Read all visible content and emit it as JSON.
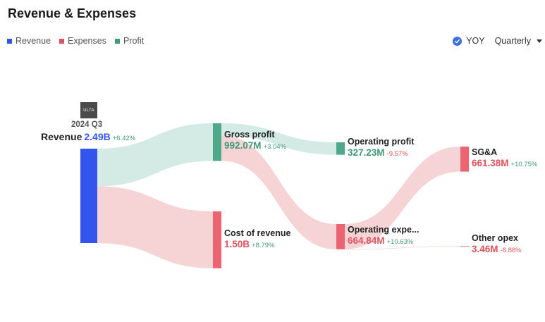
{
  "header": {
    "title": "Revenue & Expenses"
  },
  "legend": [
    {
      "label": "Revenue",
      "color": "#3355ee"
    },
    {
      "label": "Expenses",
      "color": "#e0525c"
    },
    {
      "label": "Profit",
      "color": "#3f9a78"
    }
  ],
  "controls": {
    "yoy_label": "YOY",
    "yoy_checked": true,
    "period_label": "Quarterly"
  },
  "company": {
    "logo_text": "ULTA",
    "period": "2024 Q3"
  },
  "colors": {
    "revenue": "#3355ee",
    "expense": "#eb6470",
    "profit": "#4ea88a",
    "expense_link": "#f6d4d5",
    "profit_link": "#d3ebe4",
    "positive": "#3f9a78",
    "negative": "#e0525c",
    "revenue_text": "#3355ee",
    "expense_text": "#e0525c",
    "profit_text": "#3f9a78"
  },
  "chart_data": {
    "type": "sankey",
    "title": "Revenue & Expenses",
    "unit": "USD",
    "nodes": [
      {
        "id": "revenue",
        "name": "Revenue",
        "value": 2490,
        "display": "2.49B",
        "change": "+6.42%",
        "kind": "revenue",
        "column": 0
      },
      {
        "id": "gross_profit",
        "name": "Gross profit",
        "value": 992.07,
        "display": "992.07M",
        "change": "+3.04%",
        "kind": "profit",
        "column": 1
      },
      {
        "id": "cost_of_revenue",
        "name": "Cost of revenue",
        "value": 1500,
        "display": "1.50B",
        "change": "+8.79%",
        "kind": "expense",
        "column": 1
      },
      {
        "id": "operating_profit",
        "name": "Operating profit",
        "value": 327.23,
        "display": "327.23M",
        "change": "-9.57%",
        "kind": "profit",
        "column": 2
      },
      {
        "id": "operating_expenses",
        "name": "Operating expe...",
        "value": 664.84,
        "display": "664.84M",
        "change": "+10.63%",
        "kind": "expense",
        "column": 2
      },
      {
        "id": "sga",
        "name": "SG&A",
        "value": 661.38,
        "display": "661.38M",
        "change": "+10.75%",
        "kind": "expense",
        "column": 3
      },
      {
        "id": "other_opex",
        "name": "Other opex",
        "value": 3.46,
        "display": "3.46M",
        "change": "-8.88%",
        "kind": "expense",
        "column": 3
      }
    ],
    "links": [
      {
        "source": "revenue",
        "target": "gross_profit",
        "value": 992.07,
        "kind": "profit"
      },
      {
        "source": "revenue",
        "target": "cost_of_revenue",
        "value": 1500,
        "kind": "expense"
      },
      {
        "source": "gross_profit",
        "target": "operating_profit",
        "value": 327.23,
        "kind": "profit"
      },
      {
        "source": "gross_profit",
        "target": "operating_expenses",
        "value": 664.84,
        "kind": "expense"
      },
      {
        "source": "operating_expenses",
        "target": "sga",
        "value": 661.38,
        "kind": "expense"
      },
      {
        "source": "operating_expenses",
        "target": "other_opex",
        "value": 3.46,
        "kind": "expense"
      }
    ]
  }
}
